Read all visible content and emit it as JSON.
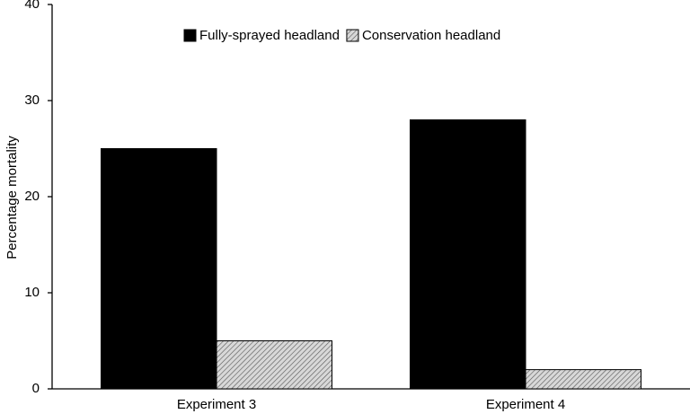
{
  "chart_data": {
    "type": "bar",
    "y_label": "Percentage mortality",
    "categories": [
      "Experiment 3",
      "Experiment 4"
    ],
    "series": [
      {
        "name": "Fully-sprayed headland",
        "color": "#000000",
        "values": [
          25,
          28
        ]
      },
      {
        "name": "Conservation headland",
        "color": "#d8d8d8",
        "pattern": "hatch",
        "values": [
          5,
          2
        ]
      }
    ],
    "ylim": [
      0,
      40
    ],
    "yticks": [
      0,
      10,
      20,
      30,
      40
    ],
    "grid": false,
    "legend": "top"
  }
}
